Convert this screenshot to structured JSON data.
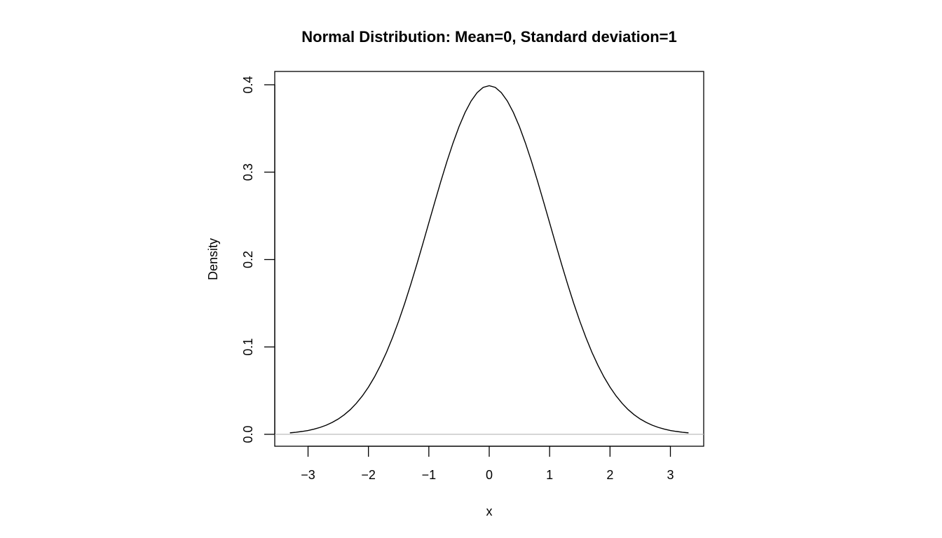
{
  "chart_data": {
    "type": "line",
    "title": "Normal Distribution:  Mean=0, Standard deviation=1",
    "xlabel": "x",
    "ylabel": "Density",
    "xlim": [
      -3.3,
      3.3
    ],
    "ylim": [
      0,
      0.4
    ],
    "x_ticks": [
      -3,
      -2,
      -1,
      0,
      1,
      2,
      3
    ],
    "x_tick_labels": [
      "−3",
      "−2",
      "−1",
      "0",
      "1",
      "2",
      "3"
    ],
    "y_ticks": [
      0,
      0.1,
      0.2,
      0.3,
      0.4
    ],
    "y_tick_labels": [
      "0.0",
      "0.1",
      "0.2",
      "0.3",
      "0.4"
    ],
    "grid": false,
    "reference_line": {
      "y": 0,
      "color": "#bebebe"
    },
    "series": [
      {
        "color": "#000000",
        "x": [
          -3.3,
          -3.2,
          -3.1,
          -3.0,
          -2.9,
          -2.8,
          -2.7,
          -2.6,
          -2.5,
          -2.4,
          -2.3,
          -2.2,
          -2.1,
          -2.0,
          -1.9,
          -1.8,
          -1.7,
          -1.6,
          -1.5,
          -1.4,
          -1.3,
          -1.2,
          -1.1,
          -1.0,
          -0.9,
          -0.8,
          -0.7,
          -0.6,
          -0.5,
          -0.4,
          -0.3,
          -0.2,
          -0.1,
          0.0,
          0.1,
          0.2,
          0.3,
          0.4,
          0.5,
          0.6,
          0.7,
          0.8,
          0.9,
          1.0,
          1.1,
          1.2,
          1.3,
          1.4,
          1.5,
          1.6,
          1.7,
          1.8,
          1.9,
          2.0,
          2.1,
          2.2,
          2.3,
          2.4,
          2.5,
          2.6,
          2.7,
          2.8,
          2.9,
          3.0,
          3.1,
          3.2,
          3.3
        ],
        "values": [
          0.0017,
          0.0024,
          0.0033,
          0.0044,
          0.006,
          0.0079,
          0.0104,
          0.0136,
          0.0175,
          0.0224,
          0.0283,
          0.0355,
          0.044,
          0.054,
          0.0656,
          0.079,
          0.094,
          0.1109,
          0.1295,
          0.1497,
          0.1714,
          0.1942,
          0.2179,
          0.242,
          0.2661,
          0.2897,
          0.3123,
          0.3332,
          0.3521,
          0.3683,
          0.3814,
          0.391,
          0.397,
          0.3989,
          0.397,
          0.391,
          0.3814,
          0.3683,
          0.3521,
          0.3332,
          0.3123,
          0.2897,
          0.2661,
          0.242,
          0.2179,
          0.1942,
          0.1714,
          0.1497,
          0.1295,
          0.1109,
          0.094,
          0.079,
          0.0656,
          0.054,
          0.044,
          0.0355,
          0.0283,
          0.0224,
          0.0175,
          0.0136,
          0.0104,
          0.0079,
          0.006,
          0.0044,
          0.0033,
          0.0024,
          0.0017
        ]
      }
    ]
  }
}
